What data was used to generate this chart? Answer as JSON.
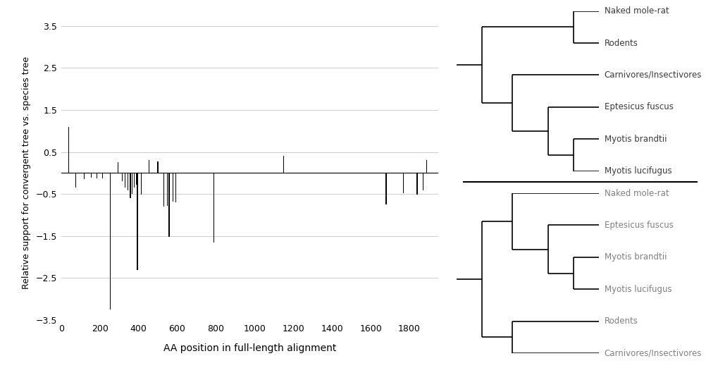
{
  "xlabel": "AA position in full-length alignment",
  "ylabel": "Relative support for convergent tree vs. species tree",
  "xlim": [
    0,
    1950
  ],
  "ylim": [
    -3.5,
    3.5
  ],
  "xticks": [
    0,
    200,
    400,
    600,
    800,
    1000,
    1200,
    1400,
    1600,
    1800
  ],
  "yticks": [
    -3.5,
    -2.5,
    -1.5,
    -0.5,
    0.5,
    1.5,
    2.5,
    3.5
  ],
  "bar_color": "#000000",
  "background_color": "#ffffff",
  "grid_color": "#cccccc",
  "bar_data": [
    [
      40,
      1.1
    ],
    [
      75,
      -0.35
    ],
    [
      120,
      -0.15
    ],
    [
      155,
      -0.12
    ],
    [
      185,
      -0.13
    ],
    [
      215,
      -0.13
    ],
    [
      255,
      -3.25
    ],
    [
      295,
      0.25
    ],
    [
      315,
      -0.2
    ],
    [
      330,
      -0.35
    ],
    [
      345,
      -0.42
    ],
    [
      358,
      -0.6
    ],
    [
      368,
      -0.5
    ],
    [
      378,
      -0.35
    ],
    [
      390,
      -0.28
    ],
    [
      395,
      -2.3
    ],
    [
      415,
      -0.52
    ],
    [
      455,
      0.3
    ],
    [
      500,
      0.28
    ],
    [
      530,
      -0.8
    ],
    [
      548,
      -0.78
    ],
    [
      558,
      -1.52
    ],
    [
      578,
      -0.68
    ],
    [
      592,
      -0.7
    ],
    [
      790,
      -1.65
    ],
    [
      1150,
      0.4
    ],
    [
      1680,
      -0.75
    ],
    [
      1770,
      -0.48
    ],
    [
      1840,
      -0.52
    ],
    [
      1870,
      -0.42
    ],
    [
      1890,
      0.3
    ]
  ],
  "line_color": "#000000",
  "separator_color": "#000000",
  "tree1_leaves": [
    "Naked mole-rat",
    "Rodents",
    "Carnivores/Insectivores",
    "Eptesicus fuscus",
    "Myotis brandtii",
    "Myotis lucifugus"
  ],
  "tree2_leaves": [
    "Naked mole-rat",
    "Eptesicus fuscus",
    "Myotis brandtii",
    "Myotis lucifugus",
    "Rodents",
    "Carnivores/Insectivores"
  ],
  "leaf_fontsize": 8.5,
  "leaf_color_1": "#3a3a3a",
  "leaf_color_2": "#808080"
}
